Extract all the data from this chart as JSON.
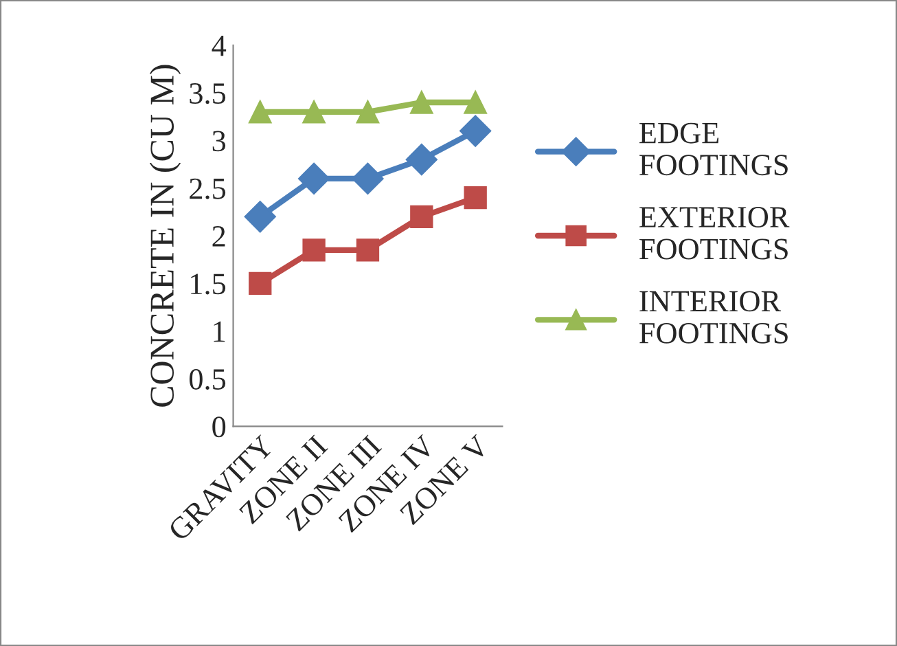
{
  "chart_data": {
    "type": "line",
    "ylabel": "CONCRETE IN (CU M)",
    "categories": [
      "GRAVITY",
      "ZONE II",
      "ZONE III",
      "ZONE IV",
      "ZONE V"
    ],
    "series": [
      {
        "name": "EDGE\nFOOTINGS",
        "color": "#4a7ebb",
        "marker": "diamond",
        "values": [
          2.2,
          2.6,
          2.6,
          2.8,
          3.1
        ]
      },
      {
        "name": "EXTERIOR\nFOOTINGS",
        "color": "#be4b48",
        "marker": "square",
        "values": [
          1.5,
          1.85,
          1.85,
          2.2,
          2.4
        ]
      },
      {
        "name": "INTERIOR\nFOOTINGS",
        "color": "#98b954",
        "marker": "triangle",
        "values": [
          3.3,
          3.3,
          3.3,
          3.4,
          3.4
        ]
      }
    ],
    "ylim": [
      0,
      4
    ],
    "yticks": [
      0,
      0.5,
      1,
      1.5,
      2,
      2.5,
      3,
      3.5,
      4
    ],
    "grid": false,
    "legend": "right"
  }
}
